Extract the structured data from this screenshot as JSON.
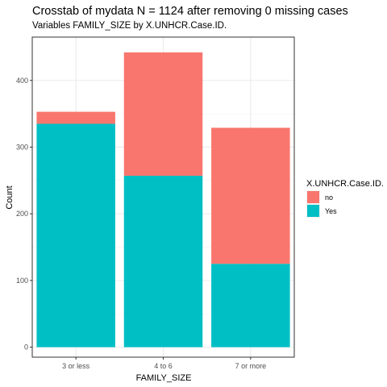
{
  "chart_data": {
    "type": "bar",
    "stacked": true,
    "title": "Crosstab of mydata N = 1124 after removing 0 missing cases",
    "subtitle": "Variables FAMILY_SIZE by X.UNHCR.Case.ID.",
    "xlabel": "FAMILY_SIZE",
    "ylabel": "Count",
    "categories": [
      "3 or less",
      "4 to 6",
      "7 or more"
    ],
    "series": [
      {
        "name": "Yes",
        "color": "#00BFC4",
        "values": [
          335,
          257,
          125
        ]
      },
      {
        "name": "no",
        "color": "#F8766D",
        "values": [
          18,
          185,
          204
        ]
      }
    ],
    "ylim": [
      -15,
      465
    ],
    "yticks": [
      0,
      100,
      200,
      300,
      400
    ],
    "grid": true,
    "legend": {
      "title": "X.UNHCR.Case.ID.",
      "position": "right",
      "entries": [
        "no",
        "Yes"
      ]
    }
  }
}
